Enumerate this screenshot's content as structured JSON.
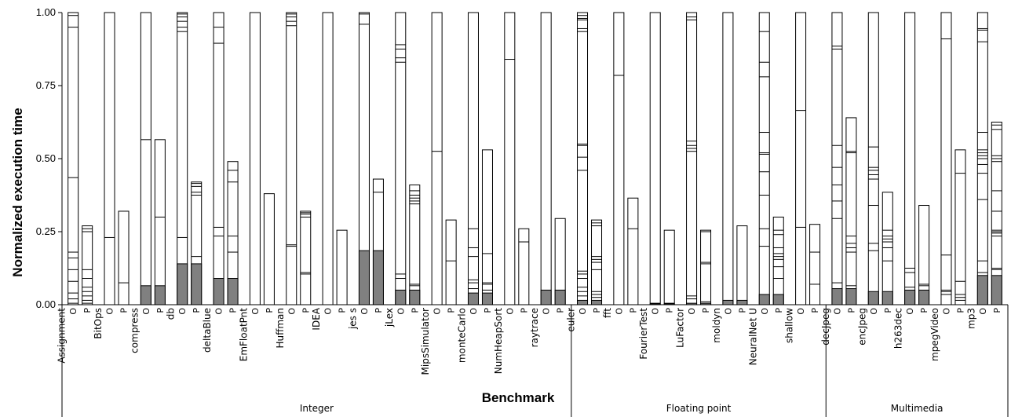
{
  "chart_data": {
    "type": "bar",
    "subtype": "stacked-segments-per-bar",
    "xlabel": "Benchmark",
    "ylabel": "Normalized execution time",
    "ylim": [
      0,
      1
    ],
    "yticks": [
      "0.00",
      "0.25",
      "0.50",
      "0.75",
      "1.00"
    ],
    "bar_variant_labels": [
      "O",
      "P"
    ],
    "dark_fill_color": "#808080",
    "groups": [
      {
        "name": "Integer",
        "benchmarks": [
          "Assignment",
          "BitOps",
          "compress",
          "db",
          "deltaBlue",
          "EmFloatPnt",
          "Huffman",
          "IDEA",
          "jess",
          "jLex",
          "MipsSimulator",
          "monteCarlo",
          "NumHeapSort",
          "raytrace"
        ]
      },
      {
        "name": "Floating point",
        "benchmarks": [
          "euler",
          "fft",
          "FourierTest",
          "LuFactor",
          "moldyn",
          "NeuralNet",
          "shallow"
        ]
      },
      {
        "name": "Multimedia",
        "benchmarks": [
          "decJpeg",
          "encJpeg",
          "h263dec",
          "mpegVideo",
          "mp3"
        ]
      }
    ],
    "benchmarks": [
      {
        "name": "Assignment",
        "label": "Assignment",
        "bars": [
          {
            "total": 1.0,
            "dark": 0.0,
            "lines": [
              0.005,
              0.02,
              0.04,
              0.08,
              0.12,
              0.16,
              0.18,
              0.435,
              0.95,
              0.99
            ]
          },
          {
            "total": 0.27,
            "dark": 0.0,
            "lines": [
              0.005,
              0.015,
              0.03,
              0.045,
              0.06,
              0.09,
              0.12,
              0.25,
              0.26
            ]
          }
        ]
      },
      {
        "name": "BitOps",
        "label": "BitOps",
        "bars": [
          {
            "total": 1.0,
            "dark": 0.0,
            "lines": [
              0.23
            ]
          },
          {
            "total": 0.32,
            "dark": 0.0,
            "lines": [
              0.075
            ]
          }
        ]
      },
      {
        "name": "compress",
        "label": "compress",
        "bars": [
          {
            "total": 1.0,
            "dark": 0.065,
            "lines": [
              0.565
            ]
          },
          {
            "total": 0.565,
            "dark": 0.065,
            "lines": [
              0.3
            ]
          }
        ]
      },
      {
        "name": "db",
        "label": "db",
        "bars": [
          {
            "total": 1.0,
            "dark": 0.14,
            "lines": [
              0.23,
              0.935,
              0.95,
              0.97,
              0.985,
              0.995
            ]
          },
          {
            "total": 0.42,
            "dark": 0.14,
            "lines": [
              0.165,
              0.375,
              0.385,
              0.405,
              0.415
            ]
          }
        ]
      },
      {
        "name": "deltaBlue",
        "label": "deltaBlue",
        "bars": [
          {
            "total": 1.0,
            "dark": 0.09,
            "lines": [
              0.235,
              0.265,
              0.895,
              0.95
            ]
          },
          {
            "total": 0.49,
            "dark": 0.09,
            "lines": [
              0.18,
              0.235,
              0.42,
              0.46
            ]
          }
        ]
      },
      {
        "name": "EmFloatPnt",
        "label": "EmFloatPnt",
        "bars": [
          {
            "total": 1.0,
            "dark": 0.0,
            "lines": []
          },
          {
            "total": 0.38,
            "dark": 0.0,
            "lines": []
          }
        ]
      },
      {
        "name": "Huffman",
        "label": "Huffman",
        "bars": [
          {
            "total": 1.0,
            "dark": 0.0,
            "lines": [
              0.2,
              0.205,
              0.955,
              0.97,
              0.985,
              0.995
            ]
          },
          {
            "total": 0.32,
            "dark": 0.0,
            "lines": [
              0.105,
              0.11,
              0.3,
              0.31,
              0.315
            ]
          }
        ]
      },
      {
        "name": "IDEA",
        "label": "IDEA",
        "bars": [
          {
            "total": 1.0,
            "dark": 0.0,
            "lines": []
          },
          {
            "total": 0.255,
            "dark": 0.0,
            "lines": []
          }
        ]
      },
      {
        "name": "jess",
        "label": "jes s",
        "bars": [
          {
            "total": 1.0,
            "dark": 0.185,
            "lines": [
              0.96,
              0.995
            ]
          },
          {
            "total": 0.43,
            "dark": 0.185,
            "lines": [
              0.385
            ]
          }
        ]
      },
      {
        "name": "jLex",
        "label": "jLex",
        "bars": [
          {
            "total": 1.0,
            "dark": 0.05,
            "lines": [
              0.09,
              0.105,
              0.83,
              0.845,
              0.875,
              0.89
            ]
          },
          {
            "total": 0.41,
            "dark": 0.05,
            "lines": [
              0.065,
              0.07,
              0.345,
              0.355,
              0.365,
              0.375,
              0.39
            ]
          }
        ]
      },
      {
        "name": "MipsSimulator",
        "label": "MipsSimulator",
        "bars": [
          {
            "total": 1.0,
            "dark": 0.0,
            "lines": [
              0.525
            ]
          },
          {
            "total": 0.29,
            "dark": 0.0,
            "lines": [
              0.15
            ]
          }
        ]
      },
      {
        "name": "monteCarlo",
        "label": "monteCarlo",
        "bars": [
          {
            "total": 1.0,
            "dark": 0.04,
            "lines": [
              0.055,
              0.075,
              0.085,
              0.165,
              0.195,
              0.26
            ]
          },
          {
            "total": 0.53,
            "dark": 0.04,
            "lines": [
              0.05,
              0.07,
              0.075,
              0.175
            ]
          }
        ]
      },
      {
        "name": "NumHeapSort",
        "label": "NumHeapSort",
        "bars": [
          {
            "total": 1.0,
            "dark": 0.0,
            "lines": [
              0.84
            ]
          },
          {
            "total": 0.26,
            "dark": 0.0,
            "lines": [
              0.215
            ]
          }
        ]
      },
      {
        "name": "raytrace",
        "label": "raytrace",
        "bars": [
          {
            "total": 1.0,
            "dark": 0.05,
            "lines": []
          },
          {
            "total": 0.295,
            "dark": 0.05,
            "lines": []
          }
        ]
      },
      {
        "name": "euler",
        "label": "euler",
        "bars": [
          {
            "total": 1.0,
            "dark": 0.015,
            "lines": [
              0.03,
              0.045,
              0.06,
              0.09,
              0.105,
              0.115,
              0.46,
              0.505,
              0.545,
              0.55,
              0.935,
              0.945,
              0.975,
              0.98,
              0.99
            ]
          },
          {
            "total": 0.29,
            "dark": 0.015,
            "lines": [
              0.025,
              0.035,
              0.045,
              0.12,
              0.145,
              0.155,
              0.165,
              0.27,
              0.28
            ]
          }
        ]
      },
      {
        "name": "fft",
        "label": "fft",
        "bars": [
          {
            "total": 1.0,
            "dark": 0.0,
            "lines": [
              0.785
            ]
          },
          {
            "total": 0.365,
            "dark": 0.0,
            "lines": [
              0.26
            ]
          }
        ]
      },
      {
        "name": "FourierTest",
        "label": "FourierTest",
        "bars": [
          {
            "total": 1.0,
            "dark": 0.003,
            "lines": [
              0.005
            ]
          },
          {
            "total": 0.255,
            "dark": 0.003,
            "lines": [
              0.005
            ]
          }
        ]
      },
      {
        "name": "LuFactor",
        "label": "LuFactor",
        "bars": [
          {
            "total": 1.0,
            "dark": 0.005,
            "lines": [
              0.02,
              0.03,
              0.525,
              0.535,
              0.545,
              0.56,
              0.975,
              0.985
            ]
          },
          {
            "total": 0.255,
            "dark": 0.005,
            "lines": [
              0.01,
              0.14,
              0.145,
              0.25
            ]
          }
        ]
      },
      {
        "name": "moldyn",
        "label": "moldyn",
        "bars": [
          {
            "total": 1.0,
            "dark": 0.015,
            "lines": []
          },
          {
            "total": 0.27,
            "dark": 0.015,
            "lines": []
          }
        ]
      },
      {
        "name": "NeuralNet",
        "label": "NeuralNet U",
        "bars": [
          {
            "total": 1.0,
            "dark": 0.035,
            "lines": [
              0.2,
              0.26,
              0.375,
              0.455,
              0.515,
              0.52,
              0.59,
              0.78,
              0.83,
              0.935
            ]
          },
          {
            "total": 0.3,
            "dark": 0.035,
            "lines": [
              0.09,
              0.13,
              0.155,
              0.165,
              0.175,
              0.195,
              0.24,
              0.255
            ]
          }
        ]
      },
      {
        "name": "shallow",
        "label": "shallow",
        "bars": [
          {
            "total": 1.0,
            "dark": 0.0,
            "lines": [
              0.265,
              0.665
            ]
          },
          {
            "total": 0.275,
            "dark": 0.0,
            "lines": [
              0.07,
              0.18
            ]
          }
        ]
      },
      {
        "name": "decJpeg",
        "label": "decJpeg",
        "bars": [
          {
            "total": 1.0,
            "dark": 0.055,
            "lines": [
              0.075,
              0.295,
              0.355,
              0.41,
              0.47,
              0.545,
              0.875,
              0.885
            ]
          },
          {
            "total": 0.64,
            "dark": 0.055,
            "lines": [
              0.065,
              0.18,
              0.195,
              0.21,
              0.235,
              0.52,
              0.525
            ]
          }
        ]
      },
      {
        "name": "encJpeg",
        "label": "encJpeg",
        "bars": [
          {
            "total": 1.0,
            "dark": 0.045,
            "lines": [
              0.185,
              0.21,
              0.34,
              0.43,
              0.445,
              0.46,
              0.47,
              0.54
            ]
          },
          {
            "total": 0.385,
            "dark": 0.045,
            "lines": [
              0.15,
              0.195,
              0.215,
              0.225,
              0.235,
              0.255
            ]
          }
        ]
      },
      {
        "name": "h263dec",
        "label": "h263dec",
        "bars": [
          {
            "total": 1.0,
            "dark": 0.05,
            "lines": [
              0.06,
              0.11,
              0.125
            ]
          },
          {
            "total": 0.34,
            "dark": 0.05,
            "lines": [
              0.065,
              0.07
            ]
          }
        ]
      },
      {
        "name": "mpegVideo",
        "label": "mpegVideo",
        "bars": [
          {
            "total": 1.0,
            "dark": 0.0,
            "lines": [
              0.035,
              0.045,
              0.05,
              0.17,
              0.91
            ]
          },
          {
            "total": 0.53,
            "dark": 0.0,
            "lines": [
              0.015,
              0.025,
              0.035,
              0.08,
              0.45
            ]
          }
        ]
      },
      {
        "name": "mp3",
        "label": "mp3",
        "bars": [
          {
            "total": 1.0,
            "dark": 0.1,
            "lines": [
              0.11,
              0.15,
              0.36,
              0.45,
              0.48,
              0.5,
              0.51,
              0.52,
              0.53,
              0.59,
              0.9,
              0.94,
              0.945
            ]
          },
          {
            "total": 0.625,
            "dark": 0.1,
            "lines": [
              0.12,
              0.125,
              0.235,
              0.245,
              0.25,
              0.255,
              0.32,
              0.39,
              0.49,
              0.5,
              0.51,
              0.6,
              0.615
            ]
          }
        ]
      }
    ]
  }
}
